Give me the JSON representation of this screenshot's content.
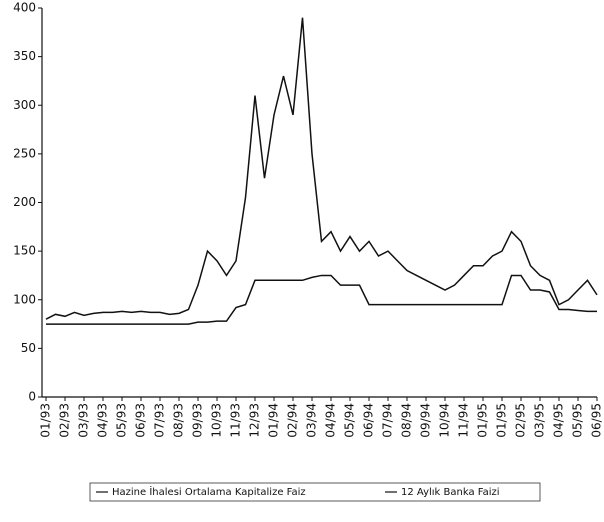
{
  "chart_data": {
    "type": "line",
    "x": [
      0,
      0.5,
      1,
      1.5,
      2,
      2.5,
      3,
      3.5,
      4,
      4.5,
      5,
      5.5,
      6,
      6.5,
      7,
      7.5,
      8,
      8.5,
      9,
      9.5,
      10,
      10.5,
      11,
      11.5,
      12,
      12.5,
      13,
      13.5,
      14,
      14.5,
      15,
      15.5,
      16,
      16.5,
      17,
      17.5,
      18,
      18.5,
      19,
      19.5,
      20,
      20.5,
      21,
      21.5,
      22,
      22.5,
      23,
      23.5,
      24,
      24.5,
      25,
      25.5,
      26,
      26.5,
      27,
      27.5,
      28,
      28.5,
      29
    ],
    "series": [
      {
        "name": "Hazine İhalesi Ortalama Kapitalize Faiz",
        "color": "#111111",
        "values": [
          80,
          85,
          83,
          87,
          84,
          86,
          87,
          87,
          88,
          87,
          88,
          87,
          87,
          85,
          86,
          90,
          115,
          150,
          140,
          125,
          140,
          205,
          310,
          225,
          290,
          330,
          290,
          390,
          250,
          160,
          170,
          150,
          165,
          150,
          160,
          145,
          150,
          140,
          130,
          125,
          120,
          115,
          110,
          115,
          125,
          135,
          135,
          145,
          150,
          170,
          160,
          135,
          125,
          120,
          95,
          100,
          110,
          120,
          105
        ]
      },
      {
        "name": "12 Aylık Banka Faizi",
        "color": "#111111",
        "values": [
          75,
          75,
          75,
          75,
          75,
          75,
          75,
          75,
          75,
          75,
          75,
          75,
          75,
          75,
          75,
          75,
          77,
          77,
          78,
          78,
          92,
          95,
          120,
          120,
          120,
          120,
          120,
          120,
          123,
          125,
          125,
          115,
          115,
          115,
          95,
          95,
          95,
          95,
          95,
          95,
          95,
          95,
          95,
          95,
          95,
          95,
          95,
          95,
          95,
          125,
          125,
          110,
          110,
          108,
          90,
          90,
          89,
          88,
          88
        ]
      }
    ],
    "xlim": [
      0,
      29
    ],
    "xticks": [
      {
        "value": 0,
        "label": "01/93"
      },
      {
        "value": 1,
        "label": "02/93"
      },
      {
        "value": 2,
        "label": "03/93"
      },
      {
        "value": 3,
        "label": "04/93"
      },
      {
        "value": 4,
        "label": "05/93"
      },
      {
        "value": 5,
        "label": "06/93"
      },
      {
        "value": 6,
        "label": "07/93"
      },
      {
        "value": 7,
        "label": "08/93"
      },
      {
        "value": 8,
        "label": "09/93"
      },
      {
        "value": 9,
        "label": "10/93"
      },
      {
        "value": 10,
        "label": "11/93"
      },
      {
        "value": 11,
        "label": "12/93"
      },
      {
        "value": 12,
        "label": "01/94"
      },
      {
        "value": 13,
        "label": "02/94"
      },
      {
        "value": 14,
        "label": "03/94"
      },
      {
        "value": 15,
        "label": "04/94"
      },
      {
        "value": 16,
        "label": "05/94"
      },
      {
        "value": 17,
        "label": "06/94"
      },
      {
        "value": 18,
        "label": "07/94"
      },
      {
        "value": 19,
        "label": "08/94"
      },
      {
        "value": 20,
        "label": "09/94"
      },
      {
        "value": 21,
        "label": "10/94"
      },
      {
        "value": 22,
        "label": "11/94"
      },
      {
        "value": 23,
        "label": "01/95"
      },
      {
        "value": 24,
        "label": "01/95"
      },
      {
        "value": 25,
        "label": "02/95"
      },
      {
        "value": 26,
        "label": "03/95"
      },
      {
        "value": 27,
        "label": "04/95"
      },
      {
        "value": 28,
        "label": "05/95"
      },
      {
        "value": 29,
        "label": "06/95"
      }
    ],
    "ylim": [
      0,
      400
    ],
    "yticks": [
      0,
      50,
      100,
      150,
      200,
      250,
      300,
      350,
      400
    ],
    "grid": false
  }
}
